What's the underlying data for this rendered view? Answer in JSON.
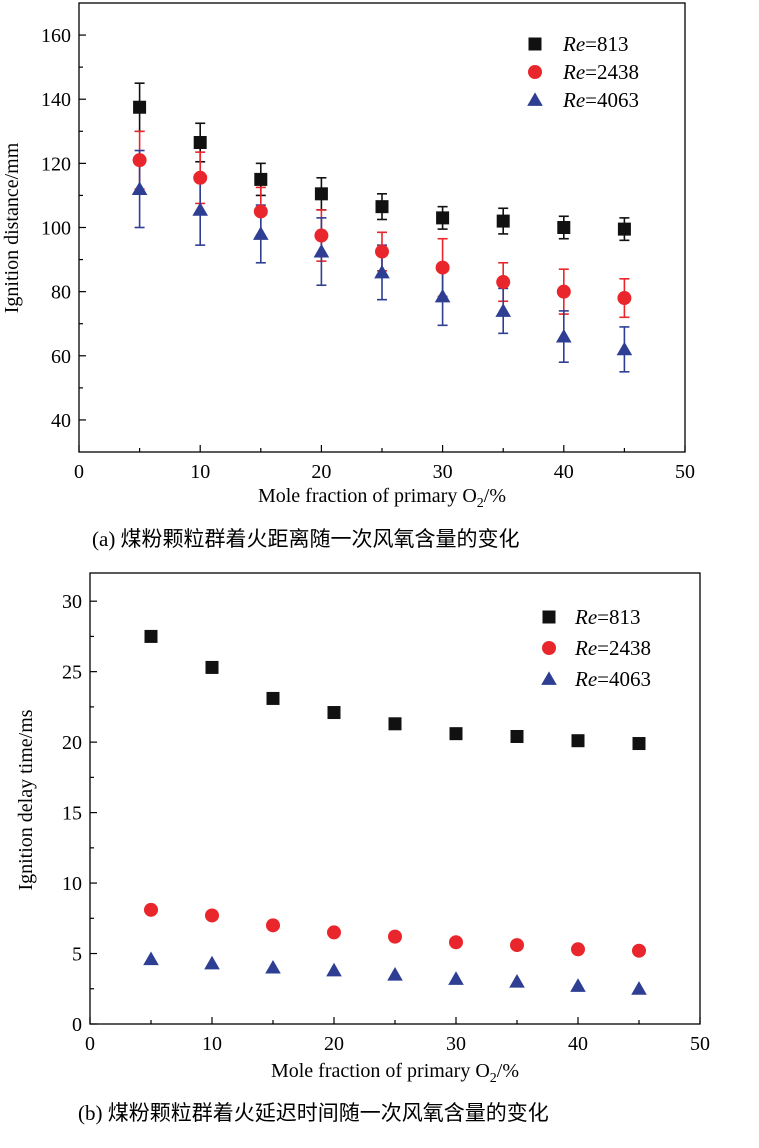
{
  "chart_data": [
    {
      "id": "a",
      "type": "scatter",
      "caption": "(a) 煤粉颗粒群着火距离随一次风氧含量的变化",
      "xlabel_main": "Mole fraction of primary O",
      "xlabel_sub": "2",
      "xlabel_tail": "/%",
      "ylabel": "Ignition distance/mm",
      "xlim": [
        0,
        50
      ],
      "ylim": [
        30,
        170
      ],
      "xticks": [
        "0",
        "10",
        "20",
        "30",
        "40",
        "50"
      ],
      "yticks": [
        "40",
        "60",
        "80",
        "100",
        "120",
        "140",
        "160"
      ],
      "x": [
        5,
        10,
        15,
        20,
        25,
        30,
        35,
        40,
        45
      ],
      "series": [
        {
          "name_italic": "Re",
          "name_rest": "=813",
          "marker": "square",
          "color": "#111111",
          "errorbar_color": "#111111",
          "values": [
            137.5,
            126.5,
            115,
            110.5,
            106.5,
            103,
            102,
            100,
            99.5
          ],
          "errors": [
            7.5,
            6,
            5,
            5,
            4,
            3.5,
            4,
            3.5,
            3.5
          ]
        },
        {
          "name_italic": "Re",
          "name_rest": "=2438",
          "marker": "circle",
          "color": "#e8262b",
          "errorbar_color": "#e8262b",
          "values": [
            121,
            115.5,
            105,
            97.5,
            92.5,
            87.5,
            83,
            80,
            78
          ],
          "errors": [
            9,
            8,
            7.5,
            8,
            6,
            9,
            6,
            7,
            6
          ]
        },
        {
          "name_italic": "Re",
          "name_rest": "=4063",
          "marker": "triangle",
          "color": "#2e3f93",
          "errorbar_color": "#2e3f93",
          "values": [
            112,
            105.5,
            98,
            92.5,
            86,
            78.5,
            74,
            66,
            62
          ],
          "errors": [
            12,
            11,
            9,
            10.5,
            8.5,
            9,
            7,
            8,
            7
          ]
        }
      ],
      "legend_position": "top-right"
    },
    {
      "id": "b",
      "type": "scatter",
      "caption": "(b) 煤粉颗粒群着火延迟时间随一次风氧含量的变化",
      "xlabel_main": "Mole fraction of primary O",
      "xlabel_sub": "2",
      "xlabel_tail": "/%",
      "ylabel": "Ignition delay time/ms",
      "xlim": [
        0,
        50
      ],
      "ylim": [
        0,
        32
      ],
      "xticks": [
        "0",
        "10",
        "20",
        "30",
        "40",
        "50"
      ],
      "yticks": [
        "0",
        "5",
        "10",
        "15",
        "20",
        "25",
        "30"
      ],
      "x": [
        5,
        10,
        15,
        20,
        25,
        30,
        35,
        40,
        45
      ],
      "series": [
        {
          "name_italic": "Re",
          "name_rest": "=813",
          "marker": "square",
          "color": "#111111",
          "values": [
            27.5,
            25.3,
            23.1,
            22.1,
            21.3,
            20.6,
            20.4,
            20.1,
            19.9
          ]
        },
        {
          "name_italic": "Re",
          "name_rest": "=2438",
          "marker": "circle",
          "color": "#e8262b",
          "values": [
            8.1,
            7.7,
            7.0,
            6.5,
            6.2,
            5.8,
            5.6,
            5.3,
            5.2
          ]
        },
        {
          "name_italic": "Re",
          "name_rest": "=4063",
          "marker": "triangle",
          "color": "#2e3f93",
          "values": [
            4.6,
            4.3,
            4.0,
            3.8,
            3.5,
            3.2,
            3.0,
            2.7,
            2.5
          ]
        }
      ],
      "legend_position": "top-right"
    }
  ]
}
